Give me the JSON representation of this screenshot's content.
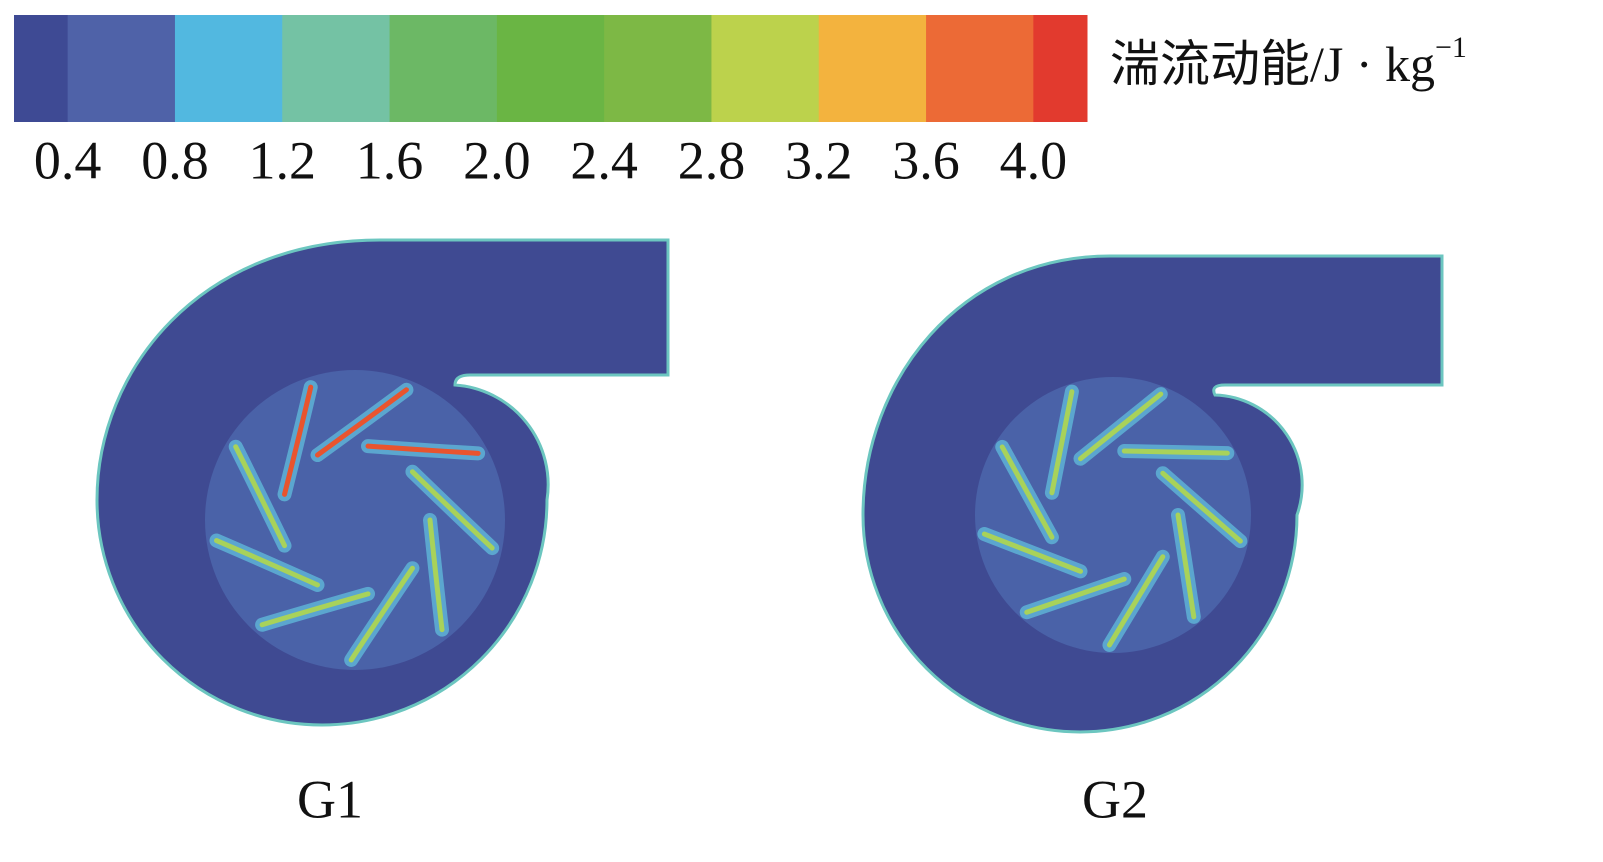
{
  "colorbar": {
    "label": "湍流动能/J · kg",
    "label_sup": "−1",
    "colors": [
      "#3e4a94",
      "#4f62a8",
      "#52b8e0",
      "#74c2a4",
      "#6cb865",
      "#6ab544",
      "#7db845",
      "#bcd24c",
      "#f3b33e",
      "#ec6a36",
      "#e23a2e"
    ],
    "lim": [
      0.2,
      4.2
    ],
    "ticks": [
      0.4,
      0.8,
      1.2,
      1.6,
      {
        "value": 2,
        "label": "2.0"
      },
      2.4,
      2.8,
      3.2,
      3.6,
      {
        "value": 4,
        "label": "4.0"
      }
    ]
  },
  "panels": [
    {
      "label": "G1"
    },
    {
      "label": "G2"
    }
  ]
}
